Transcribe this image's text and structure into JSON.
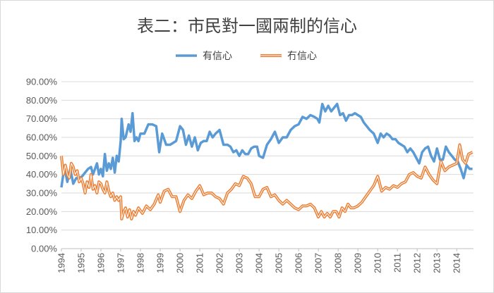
{
  "chart_data": {
    "type": "line",
    "title": "表二：市民對一國兩制的信心",
    "xlabel": "",
    "ylabel": "",
    "ylim": [
      0,
      0.9
    ],
    "yticks": [
      "0.00%",
      "10.00%",
      "20.00%",
      "30.00%",
      "40.00%",
      "50.00%",
      "60.00%",
      "70.00%",
      "80.00%",
      "90.00%"
    ],
    "xticks": [
      "1994",
      "1995",
      "1996",
      "1997",
      "1998",
      "1999",
      "2000",
      "2001",
      "2002",
      "2003",
      "2004",
      "2005",
      "2006",
      "2007",
      "2008",
      "2009",
      "2010",
      "2011",
      "2012",
      "2013",
      "2014"
    ],
    "xlim": [
      1994.0,
      2014.85
    ],
    "grid": true,
    "legend_position": "top",
    "series": [
      {
        "name": "有信心",
        "color": "#5B9BD5",
        "style": "solid",
        "x": [
          1994.0,
          1994.15,
          1994.3,
          1994.45,
          1994.6,
          1994.75,
          1994.9,
          1995.05,
          1995.2,
          1995.35,
          1995.5,
          1995.6,
          1995.7,
          1995.8,
          1995.9,
          1996.0,
          1996.1,
          1996.2,
          1996.3,
          1996.4,
          1996.5,
          1996.6,
          1996.7,
          1996.8,
          1996.9,
          1997.0,
          1997.05,
          1997.15,
          1997.25,
          1997.4,
          1997.5,
          1997.6,
          1997.7,
          1997.8,
          1997.9,
          1998.0,
          1998.2,
          1998.4,
          1998.6,
          1998.8,
          1998.95,
          1999.1,
          1999.3,
          1999.5,
          1999.65,
          1999.8,
          2000.0,
          2000.15,
          2000.3,
          2000.45,
          2000.6,
          2000.75,
          2000.9,
          2001.05,
          2001.2,
          2001.35,
          2001.5,
          2001.65,
          2001.8,
          2002.0,
          2002.2,
          2002.4,
          2002.55,
          2002.7,
          2002.85,
          2003.0,
          2003.15,
          2003.3,
          2003.45,
          2003.6,
          2003.75,
          2003.9,
          2004.0,
          2004.2,
          2004.4,
          2004.6,
          2004.8,
          2005.0,
          2005.2,
          2005.4,
          2005.6,
          2005.8,
          2006.0,
          2006.2,
          2006.4,
          2006.6,
          2006.8,
          2006.95,
          2007.05,
          2007.2,
          2007.35,
          2007.5,
          2007.65,
          2007.8,
          2007.95,
          2008.1,
          2008.25,
          2008.4,
          2008.55,
          2008.7,
          2008.85,
          2009.0,
          2009.15,
          2009.3,
          2009.45,
          2009.6,
          2009.8,
          2010.0,
          2010.15,
          2010.3,
          2010.45,
          2010.6,
          2010.75,
          2010.9,
          2011.05,
          2011.2,
          2011.35,
          2011.5,
          2011.65,
          2011.8,
          2011.95,
          2012.1,
          2012.25,
          2012.4,
          2012.55,
          2012.7,
          2012.85,
          2013.0,
          2013.15,
          2013.3,
          2013.45,
          2013.6,
          2013.75,
          2013.9,
          2014.05,
          2014.2,
          2014.35,
          2014.5,
          2014.65,
          2014.8
        ],
        "y": [
          0.33,
          0.44,
          0.36,
          0.43,
          0.35,
          0.38,
          0.38,
          0.39,
          0.41,
          0.43,
          0.44,
          0.4,
          0.43,
          0.46,
          0.4,
          0.43,
          0.39,
          0.51,
          0.42,
          0.46,
          0.43,
          0.49,
          0.41,
          0.5,
          0.47,
          0.58,
          0.7,
          0.59,
          0.6,
          0.67,
          0.63,
          0.73,
          0.58,
          0.6,
          0.58,
          0.62,
          0.62,
          0.67,
          0.67,
          0.66,
          0.52,
          0.62,
          0.56,
          0.56,
          0.57,
          0.58,
          0.66,
          0.64,
          0.56,
          0.61,
          0.55,
          0.6,
          0.53,
          0.57,
          0.58,
          0.58,
          0.63,
          0.6,
          0.62,
          0.64,
          0.56,
          0.56,
          0.55,
          0.52,
          0.53,
          0.5,
          0.53,
          0.51,
          0.51,
          0.54,
          0.55,
          0.55,
          0.5,
          0.49,
          0.56,
          0.59,
          0.63,
          0.57,
          0.6,
          0.6,
          0.64,
          0.66,
          0.67,
          0.71,
          0.7,
          0.72,
          0.71,
          0.7,
          0.68,
          0.78,
          0.74,
          0.77,
          0.74,
          0.76,
          0.78,
          0.72,
          0.73,
          0.69,
          0.72,
          0.72,
          0.73,
          0.72,
          0.71,
          0.68,
          0.66,
          0.64,
          0.62,
          0.57,
          0.62,
          0.6,
          0.62,
          0.61,
          0.59,
          0.59,
          0.57,
          0.56,
          0.55,
          0.52,
          0.54,
          0.52,
          0.49,
          0.46,
          0.52,
          0.54,
          0.55,
          0.5,
          0.47,
          0.54,
          0.48,
          0.48,
          0.55,
          0.52,
          0.5,
          0.48,
          0.47,
          0.43,
          0.38,
          0.45,
          0.43,
          0.43
        ],
        "stroke_width": 3.5
      },
      {
        "name": "冇信心",
        "color": "#ED7D31",
        "style": "outline",
        "x": [
          1994.0,
          1994.1,
          1994.2,
          1994.3,
          1994.4,
          1994.5,
          1994.6,
          1994.7,
          1994.8,
          1994.9,
          1995.0,
          1995.1,
          1995.2,
          1995.3,
          1995.4,
          1995.5,
          1995.6,
          1995.7,
          1995.8,
          1995.9,
          1996.0,
          1996.1,
          1996.2,
          1996.3,
          1996.4,
          1996.5,
          1996.6,
          1996.7,
          1996.8,
          1996.9,
          1997.0,
          1997.05,
          1997.15,
          1997.25,
          1997.35,
          1997.45,
          1997.55,
          1997.65,
          1997.75,
          1997.9,
          1998.1,
          1998.3,
          1998.5,
          1998.7,
          1998.9,
          1999.0,
          1999.2,
          1999.4,
          1999.6,
          1999.8,
          2000.0,
          2000.2,
          2000.4,
          2000.6,
          2000.8,
          2001.0,
          2001.2,
          2001.4,
          2001.6,
          2001.8,
          2002.0,
          2002.2,
          2002.4,
          2002.6,
          2002.8,
          2003.0,
          2003.2,
          2003.4,
          2003.6,
          2003.8,
          2004.0,
          2004.2,
          2004.4,
          2004.6,
          2004.8,
          2005.0,
          2005.2,
          2005.4,
          2005.6,
          2005.8,
          2006.0,
          2006.2,
          2006.4,
          2006.6,
          2006.8,
          2007.0,
          2007.15,
          2007.3,
          2007.45,
          2007.6,
          2007.75,
          2007.9,
          2008.05,
          2008.2,
          2008.35,
          2008.5,
          2008.65,
          2008.8,
          2009.0,
          2009.2,
          2009.4,
          2009.6,
          2009.8,
          2010.0,
          2010.2,
          2010.4,
          2010.6,
          2010.8,
          2011.0,
          2011.2,
          2011.4,
          2011.6,
          2011.8,
          2012.0,
          2012.2,
          2012.4,
          2012.6,
          2012.8,
          2013.0,
          2013.2,
          2013.4,
          2013.6,
          2013.8,
          2014.0,
          2014.15,
          2014.3,
          2014.45,
          2014.6,
          2014.8
        ],
        "y": [
          0.5,
          0.4,
          0.45,
          0.4,
          0.38,
          0.46,
          0.44,
          0.4,
          0.42,
          0.36,
          0.38,
          0.35,
          0.3,
          0.36,
          0.33,
          0.4,
          0.32,
          0.34,
          0.3,
          0.36,
          0.35,
          0.32,
          0.3,
          0.36,
          0.31,
          0.28,
          0.3,
          0.26,
          0.28,
          0.26,
          0.28,
          0.16,
          0.2,
          0.22,
          0.17,
          0.21,
          0.16,
          0.2,
          0.18,
          0.22,
          0.19,
          0.23,
          0.21,
          0.24,
          0.29,
          0.25,
          0.31,
          0.32,
          0.28,
          0.28,
          0.2,
          0.26,
          0.29,
          0.27,
          0.31,
          0.34,
          0.29,
          0.3,
          0.3,
          0.28,
          0.27,
          0.24,
          0.3,
          0.32,
          0.35,
          0.34,
          0.39,
          0.38,
          0.35,
          0.28,
          0.28,
          0.32,
          0.33,
          0.28,
          0.29,
          0.26,
          0.24,
          0.26,
          0.24,
          0.22,
          0.21,
          0.23,
          0.23,
          0.24,
          0.22,
          0.17,
          0.2,
          0.17,
          0.19,
          0.17,
          0.2,
          0.2,
          0.17,
          0.22,
          0.2,
          0.24,
          0.22,
          0.22,
          0.23,
          0.25,
          0.28,
          0.31,
          0.34,
          0.39,
          0.31,
          0.33,
          0.32,
          0.34,
          0.33,
          0.35,
          0.36,
          0.4,
          0.41,
          0.39,
          0.38,
          0.44,
          0.4,
          0.37,
          0.35,
          0.47,
          0.42,
          0.44,
          0.45,
          0.46,
          0.56,
          0.48,
          0.46,
          0.51,
          0.52
        ],
        "stroke_width": 3
      }
    ]
  }
}
